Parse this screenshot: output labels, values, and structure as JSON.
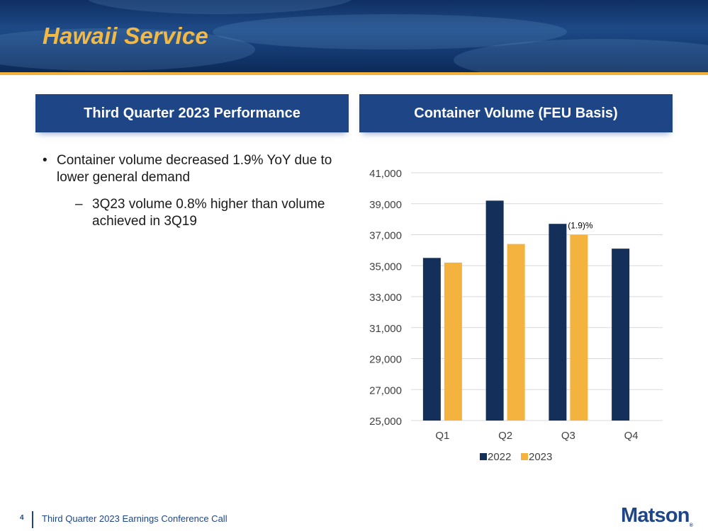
{
  "slide": {
    "title": "Hawaii Service",
    "left_header": "Third Quarter 2023 Performance",
    "right_header": "Container Volume (FEU Basis)",
    "bullet1": "Container volume decreased 1.9% YoY due to lower general demand",
    "bullet2": "3Q23 volume 0.8% higher than volume achieved in 3Q19",
    "footer_page": "4",
    "footer_text": "Third Quarter 2023 Earnings Conference Call",
    "logo": "Matson",
    "logo_mark": "®"
  },
  "colors": {
    "navy": "#1e4686",
    "gold": "#f2b23a"
  },
  "chart_data": {
    "type": "bar",
    "title": "Container Volume (FEU Basis)",
    "categories": [
      "Q1",
      "Q2",
      "Q3",
      "Q4"
    ],
    "series": [
      {
        "name": "2022",
        "color": "#14305a",
        "values": [
          35500,
          39200,
          37700,
          36100
        ]
      },
      {
        "name": "2023",
        "color": "#f4b23e",
        "values": [
          35200,
          36400,
          37000,
          null
        ]
      }
    ],
    "ylim": [
      25000,
      41000
    ],
    "yticks": [
      25000,
      27000,
      29000,
      31000,
      33000,
      35000,
      37000,
      39000,
      41000
    ],
    "grid": true,
    "legend": "bottom",
    "annotations": [
      {
        "category": "Q3",
        "series": "2023",
        "text": "(1.9)%"
      }
    ]
  }
}
